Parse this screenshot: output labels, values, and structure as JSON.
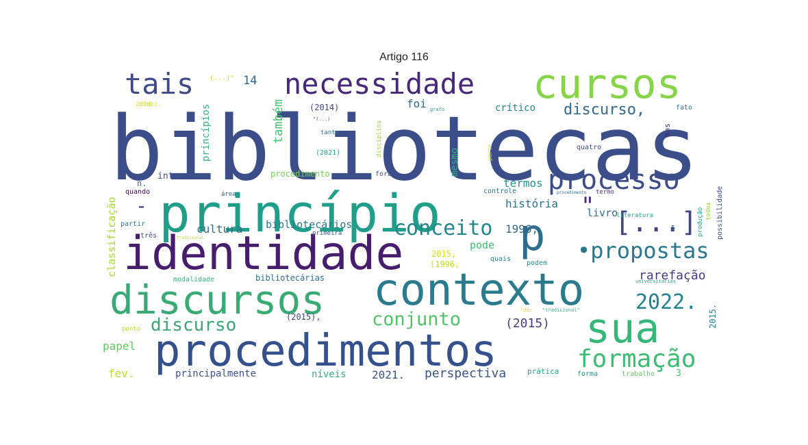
{
  "title": "Artigo 116",
  "words": [
    {
      "text": "bibliotecas",
      "color": "#3b4e8a"
    },
    {
      "text": "princípio",
      "color": "#1f9e89"
    },
    {
      "text": "identidade",
      "color": "#471d6e"
    },
    {
      "text": "procedimentos",
      "color": "#34508d"
    },
    {
      "text": "contexto",
      "color": "#2b7b8e"
    },
    {
      "text": "discursos",
      "color": "#3aaa75"
    },
    {
      "text": "cursos",
      "color": "#86d549"
    },
    {
      "text": "sua",
      "color": "#35b779"
    },
    {
      "text": "p",
      "color": "#2c6e8e"
    },
    {
      "text": "necessidade",
      "color": "#482878"
    },
    {
      "text": "tais",
      "color": "#3e4a89"
    },
    {
      "text": "processo",
      "color": "#3e4c8a"
    },
    {
      "text": "[...]",
      "color": "#414487"
    },
    {
      "text": "formação",
      "color": "#3cbc75"
    },
    {
      "text": "•propostas",
      "color": "#2a788e"
    },
    {
      "text": "conceito",
      "color": "#25858e"
    },
    {
      "text": "2022.",
      "color": "#26828e"
    },
    {
      "text": "conjunto",
      "color": "#50c46a"
    },
    {
      "text": "discurso",
      "color": "#3ba772"
    },
    {
      "text": "discurso,",
      "color": "#31688e"
    },
    {
      "text": "perspectiva",
      "color": "#39568c"
    },
    {
      "text": "(2015)",
      "color": "#433e85"
    },
    {
      "text": "rarefação",
      "color": "#443a83"
    },
    {
      "text": "história",
      "color": "#2c728e"
    },
    {
      "text": "termos",
      "color": "#20928c"
    },
    {
      "text": "cultura",
      "color": "#31688e"
    },
    {
      "text": "bibliotecários",
      "color": "#297a8e"
    },
    {
      "text": "papel",
      "color": "#5ec962"
    },
    {
      "text": "fev.",
      "color": "#bddf26"
    },
    {
      "text": "2021.",
      "color": "#3a538b"
    },
    {
      "text": "principalmente",
      "color": "#3b518b"
    },
    {
      "text": "níveis",
      "color": "#2db27d"
    },
    {
      "text": "1996,",
      "color": "#31668e"
    },
    {
      "text": "livro",
      "color": "#2e6f8e"
    },
    {
      "text": "pode",
      "color": "#40bd72"
    },
    {
      "text": "\"",
      "color": "#472d7b"
    },
    {
      "text": "-",
      "color": "#46327e"
    },
    {
      "text": "foi",
      "color": "#2e6d8e"
    },
    {
      "text": "crítico",
      "color": "#23888e"
    },
    {
      "text": "(2014)",
      "color": "#3e4989"
    },
    {
      "text": "internos",
      "color": "#3d4d8a"
    },
    {
      "text": "procedimento",
      "color": "#75d054"
    },
    {
      "text": "14",
      "color": "#32648e"
    },
    {
      "text": "também",
      "color": "#4ac16d"
    },
    {
      "text": "mesmo",
      "color": "#2db27d"
    },
    {
      "text": "princípios",
      "color": "#31b57b"
    },
    {
      "text": "classificação",
      "color": "#a2da37"
    },
    {
      "text": "bibliotecárias",
      "color": "#2d708e"
    },
    {
      "text": "modalidade",
      "color": "#2fb47c"
    },
    {
      "text": "(2015),",
      "color": "#3f4889"
    },
    {
      "text": "2015,",
      "color": "#d8e219"
    },
    {
      "text": "(1996,",
      "color": "#c2df23"
    },
    {
      "text": "quais",
      "color": "#24868e"
    },
    {
      "text": "podem",
      "color": "#21918c"
    },
    {
      "text": "prática",
      "color": "#21a685"
    },
    {
      "text": "forma",
      "color": "#238a8d"
    },
    {
      "text": "trabalho",
      "color": "#5ec962"
    },
    {
      "text": "3",
      "color": "#4ac16d"
    },
    {
      "text": "2015.",
      "color": "#25838e"
    },
    {
      "text": "possibilidade",
      "color": "#3c4f8a"
    },
    {
      "text": "produção",
      "color": "#21a585"
    },
    {
      "text": "todos",
      "color": "#95d840"
    },
    {
      "text": "literatura",
      "color": "#25ac82"
    },
    {
      "text": "controle",
      "color": "#2c738e"
    },
    {
      "text": "termo",
      "color": "#443983"
    },
    {
      "text": "mas",
      "color": "#472f7d"
    },
    {
      "text": "fato",
      "color": "#2c728e"
    },
    {
      "text": "quatro",
      "color": "#3e4989"
    },
    {
      "text": "tanto",
      "color": "#2a788e"
    },
    {
      "text": "(2021)",
      "color": "#20a386"
    },
    {
      "text": "disciplina",
      "color": "#a0da39"
    },
    {
      "text": "parte",
      "color": "#d5e21a"
    },
    {
      "text": "foram",
      "color": "#3b528b"
    },
    {
      "text": "área",
      "color": "#31688e"
    },
    {
      "text": "quando",
      "color": "#440154"
    },
    {
      "text": "partir",
      "color": "#2a788e"
    },
    {
      "text": "n.",
      "color": "#2c738e"
    },
    {
      "text": "três",
      "color": "#3e4a89"
    },
    {
      "text": "primeira",
      "color": "#38588c"
    },
    {
      "text": "ponto",
      "color": "#b5de2b"
    },
    {
      "text": "2008b).",
      "color": "#d2e21b"
    },
    {
      "text": "(...)\"",
      "color": "#d8e219"
    },
    {
      "text": "\"(...)",
      "color": "#3e4c8a"
    },
    {
      "text": "grafo",
      "color": "#1e9b8a"
    },
    {
      "text": "5",
      "color": "#2a788e"
    },
    {
      "text": "universitárias",
      "color": "#20a486"
    },
    {
      "text": "\"tradicional\"",
      "color": "#31b57b"
    },
    {
      "text": "tradicional",
      "color": "#b5de2b"
    },
    {
      "text": "procedimento",
      "color": "#2d708e"
    },
    {
      "text": "\"dos",
      "color": "#d8e219"
    }
  ]
}
